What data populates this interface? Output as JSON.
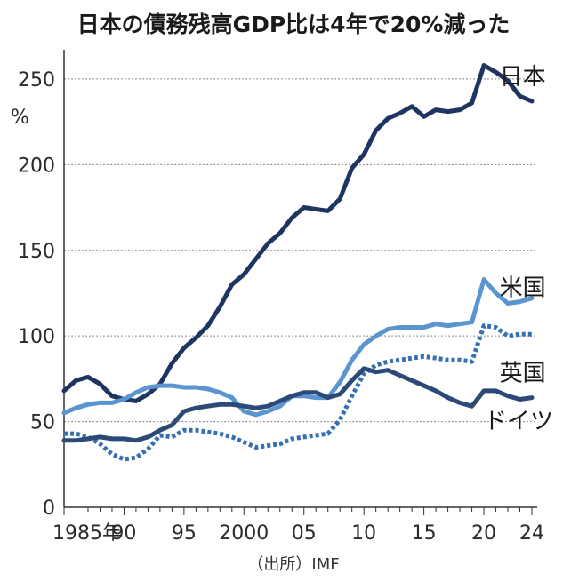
{
  "chart_data": {
    "type": "line",
    "title": "日本の債務残高GDP比は4年で20%減った",
    "ylabel": "%",
    "source": "（出所）IMF",
    "x": [
      1985,
      1986,
      1987,
      1988,
      1989,
      1990,
      1991,
      1992,
      1993,
      1994,
      1995,
      1996,
      1997,
      1998,
      1999,
      2000,
      2001,
      2002,
      2003,
      2004,
      2005,
      2006,
      2007,
      2008,
      2009,
      2010,
      2011,
      2012,
      2013,
      2014,
      2015,
      2016,
      2017,
      2018,
      2019,
      2020,
      2021,
      2022,
      2023,
      2024
    ],
    "xlim": [
      1985,
      2024
    ],
    "ylim": [
      0,
      265
    ],
    "yticks": [
      0,
      50,
      100,
      150,
      200,
      250
    ],
    "xtick_values": [
      1985,
      1990,
      1995,
      2000,
      2005,
      2010,
      2015,
      2020,
      2024
    ],
    "xtick_labels": [
      "1985年",
      "90",
      "95",
      "2000",
      "05",
      "10",
      "15",
      "20",
      "24"
    ],
    "series": [
      {
        "name": "日本",
        "color": "#1f3561",
        "style": "solid",
        "values": [
          68,
          74,
          76,
          72,
          65,
          63,
          62,
          66,
          72,
          84,
          93,
          99,
          106,
          117,
          130,
          136,
          145,
          154,
          160,
          169,
          175,
          174,
          173,
          180,
          198,
          206,
          220,
          227,
          230,
          234,
          228,
          232,
          231,
          232,
          236,
          258,
          254,
          249,
          240,
          237
        ]
      },
      {
        "name": "米国",
        "color": "#5a95cf",
        "style": "solid",
        "values": [
          55,
          58,
          60,
          61,
          61,
          63,
          67,
          70,
          71,
          71,
          70,
          70,
          69,
          67,
          64,
          56,
          54,
          56,
          59,
          65,
          65,
          64,
          64,
          73,
          86,
          95,
          100,
          104,
          105,
          105,
          105,
          107,
          106,
          107,
          108,
          133,
          125,
          119,
          120,
          122
        ]
      },
      {
        "name": "英国",
        "color": "#3570b0",
        "style": "dotted",
        "values": [
          43,
          43,
          41,
          37,
          31,
          28,
          29,
          34,
          42,
          41,
          45,
          45,
          44,
          43,
          41,
          38,
          35,
          36,
          37,
          40,
          41,
          42,
          43,
          51,
          65,
          78,
          83,
          85,
          86,
          87,
          88,
          87,
          86,
          86,
          85,
          106,
          105,
          100,
          101,
          101
        ]
      },
      {
        "name": "ドイツ",
        "color": "#2b4a78",
        "style": "solid",
        "values": [
          39,
          39,
          40,
          41,
          40,
          40,
          39,
          41,
          45,
          48,
          56,
          58,
          59,
          60,
          60,
          59,
          58,
          59,
          62,
          65,
          67,
          67,
          64,
          66,
          74,
          81,
          79,
          80,
          77,
          74,
          71,
          68,
          64,
          61,
          59,
          68,
          68,
          65,
          63,
          64
        ]
      }
    ]
  }
}
